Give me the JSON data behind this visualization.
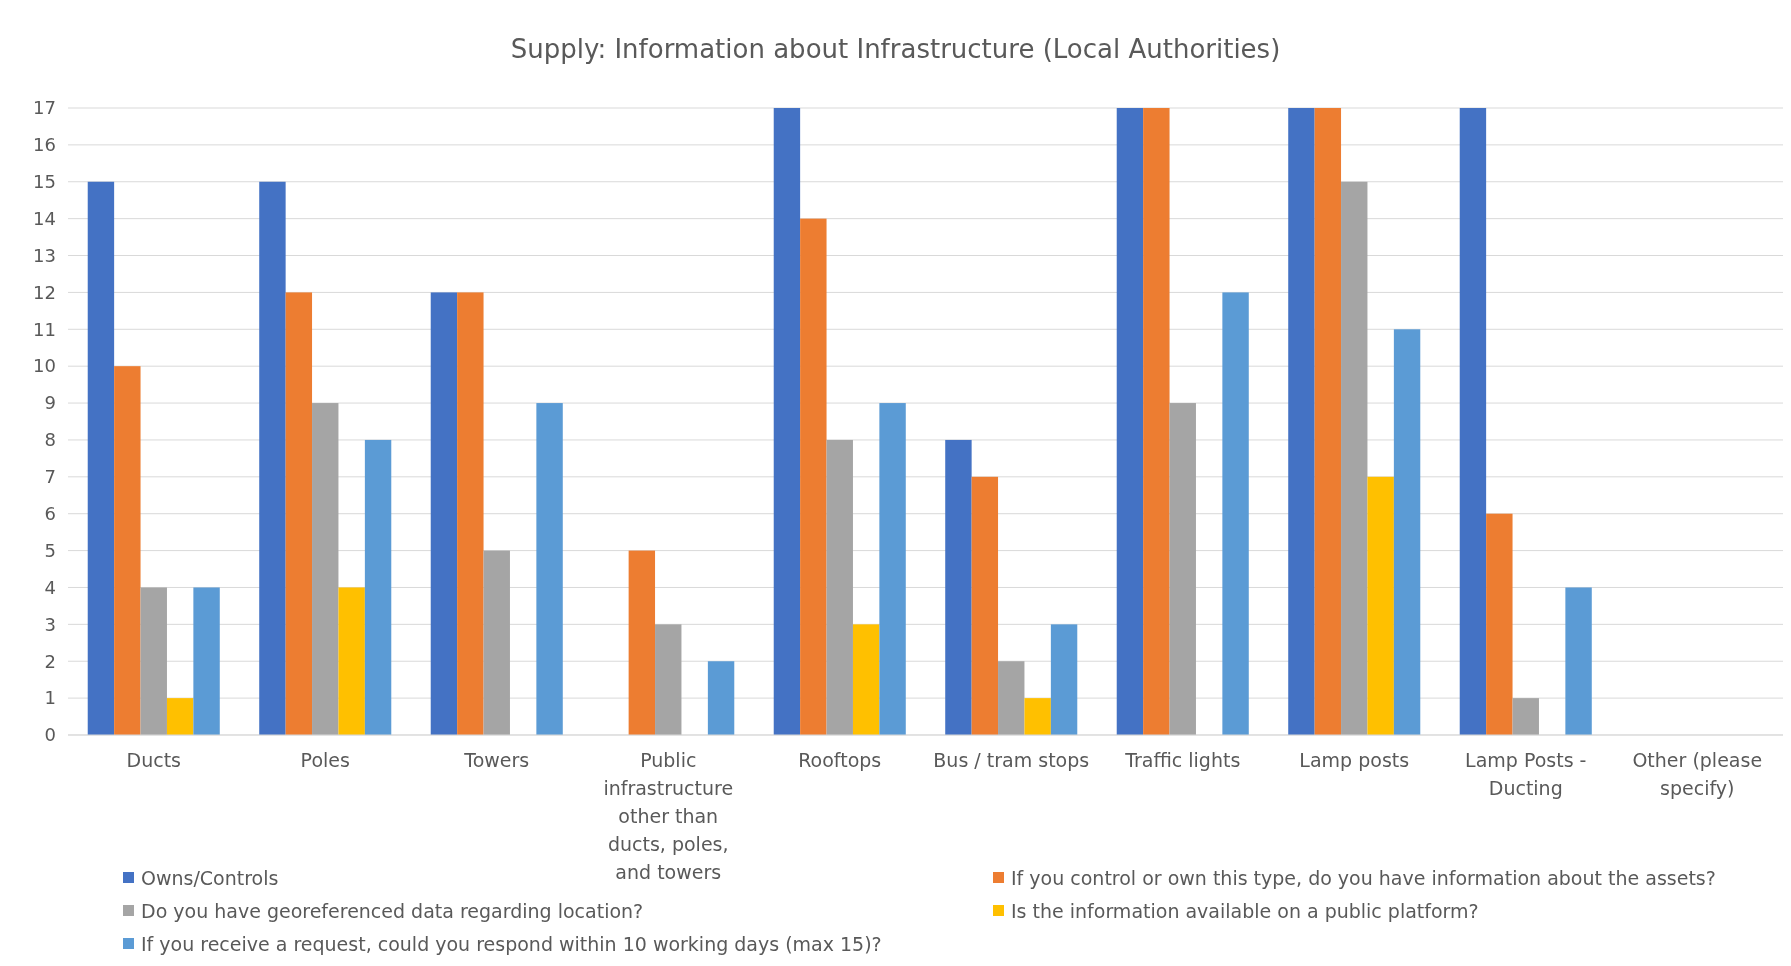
{
  "chart_data": {
    "type": "bar",
    "title": "Supply: Information about Infrastructure (Local Authorities)",
    "categories": [
      "Ducts",
      "Poles",
      "Towers",
      "Public infrastructure other than ducts, poles, and towers",
      "Rooftops",
      "Bus / tram stops",
      "Traffic lights",
      "Lamp posts",
      "Lamp Posts - Ducting",
      "Other (please specify)"
    ],
    "series": [
      {
        "name": "Owns/Controls",
        "color": "#4472c4",
        "values": [
          15,
          15,
          12,
          0,
          17,
          8,
          17,
          17,
          17,
          0
        ]
      },
      {
        "name": "If you control or own this type, do you have information about the assets?",
        "color": "#ed7d31",
        "values": [
          10,
          12,
          12,
          5,
          14,
          7,
          17,
          17,
          6,
          0
        ]
      },
      {
        "name": "Do you have georeferenced data regarding location?",
        "color": "#a5a5a5",
        "values": [
          4,
          9,
          5,
          3,
          8,
          2,
          9,
          15,
          1,
          0
        ]
      },
      {
        "name": "Is the information available on a public platform?",
        "color": "#ffc000",
        "values": [
          1,
          4,
          0,
          0,
          3,
          1,
          0,
          7,
          0,
          0
        ]
      },
      {
        "name": "If you receive a request, could you respond within 10 working days (max 15)?",
        "color": "#5b9bd5",
        "values": [
          4,
          8,
          9,
          2,
          9,
          3,
          12,
          11,
          4,
          0
        ]
      }
    ],
    "ylim": [
      0,
      17
    ],
    "yticks": [
      0,
      1,
      2,
      3,
      4,
      5,
      6,
      7,
      8,
      9,
      10,
      11,
      12,
      13,
      14,
      15,
      16,
      17
    ],
    "grid": "y",
    "legend": "bottom"
  }
}
